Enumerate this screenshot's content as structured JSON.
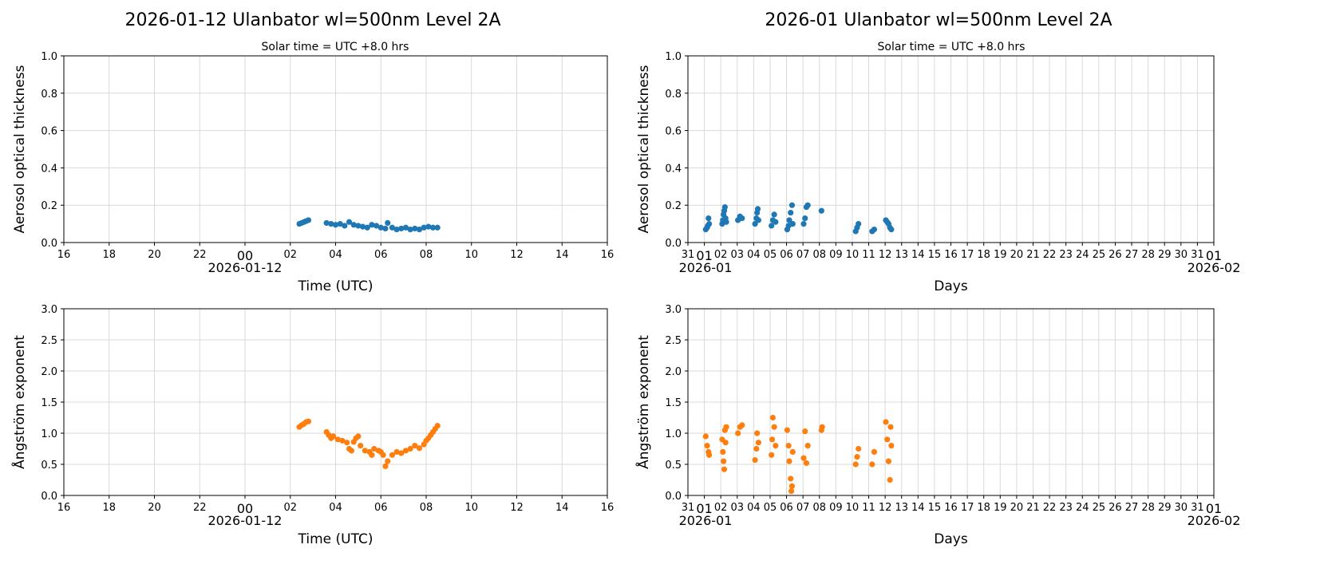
{
  "colors": {
    "aot": "#1f77b4",
    "ae": "#ff7f0e",
    "grid": "#d9d9d9"
  },
  "chart_data": [
    {
      "type": "scatter",
      "panel": "daily-aot",
      "title": "2026-01-12  Ulanbator  wl=500nm  Level 2A",
      "subtitle": "Solar time = UTC +8.0 hrs",
      "xlabel": "Time (UTC)",
      "ylabel": "Aerosol optical thickness",
      "date_label": "2026-01-12",
      "ylim": [
        0,
        1
      ],
      "yticks": [
        "0.0",
        "0.2",
        "0.4",
        "0.6",
        "0.8",
        "1.0"
      ],
      "xticks": [
        "16",
        "18",
        "20",
        "22",
        "00",
        "02",
        "04",
        "06",
        "08",
        "10",
        "12",
        "14",
        "16"
      ],
      "grid": true,
      "points": [
        [
          "02:24",
          0.1
        ],
        [
          "02:30",
          0.105
        ],
        [
          "02:36",
          0.11
        ],
        [
          "02:42",
          0.115
        ],
        [
          "02:48",
          0.12
        ],
        [
          "03:36",
          0.105
        ],
        [
          "03:48",
          0.1
        ],
        [
          "04:00",
          0.095
        ],
        [
          "04:12",
          0.1
        ],
        [
          "04:24",
          0.09
        ],
        [
          "04:36",
          0.11
        ],
        [
          "04:48",
          0.095
        ],
        [
          "05:00",
          0.09
        ],
        [
          "05:12",
          0.085
        ],
        [
          "05:24",
          0.08
        ],
        [
          "05:36",
          0.095
        ],
        [
          "05:48",
          0.09
        ],
        [
          "06:00",
          0.08
        ],
        [
          "06:12",
          0.075
        ],
        [
          "06:18",
          0.105
        ],
        [
          "06:30",
          0.08
        ],
        [
          "06:42",
          0.07
        ],
        [
          "06:54",
          0.075
        ],
        [
          "07:06",
          0.08
        ],
        [
          "07:18",
          0.07
        ],
        [
          "07:30",
          0.075
        ],
        [
          "07:42",
          0.07
        ],
        [
          "07:54",
          0.08
        ],
        [
          "08:06",
          0.085
        ],
        [
          "08:18",
          0.08
        ],
        [
          "08:30",
          0.08
        ]
      ]
    },
    {
      "type": "scatter",
      "panel": "monthly-aot",
      "title": "2026-01  Ulanbator  wl=500nm  Level 2A",
      "subtitle": "Solar time = UTC +8.0 hrs",
      "xlabel": "Days",
      "ylabel": "Aerosol optical thickness",
      "date_label_start": "2026-01",
      "date_label_end": "2026-02",
      "ylim": [
        0,
        1
      ],
      "yticks": [
        "0.0",
        "0.2",
        "0.4",
        "0.6",
        "0.8",
        "1.0"
      ],
      "xticks": [
        "31",
        "01",
        "02",
        "03",
        "04",
        "05",
        "06",
        "07",
        "08",
        "09",
        "10",
        "11",
        "12",
        "13",
        "14",
        "15",
        "16",
        "17",
        "18",
        "19",
        "20",
        "21",
        "22",
        "23",
        "24",
        "25",
        "26",
        "27",
        "28",
        "29",
        "30",
        "31",
        "01"
      ],
      "grid": true,
      "points": [
        [
          "01-01 02:00",
          0.07
        ],
        [
          "01-01 04:00",
          0.08
        ],
        [
          "01-01 05:00",
          0.09
        ],
        [
          "01-01 06:00",
          0.13
        ],
        [
          "01-01 07:00",
          0.1
        ],
        [
          "01-02 02:00",
          0.1
        ],
        [
          "01-02 03:00",
          0.12
        ],
        [
          "01-02 04:00",
          0.15
        ],
        [
          "01-02 05:00",
          0.17
        ],
        [
          "01-02 06:00",
          0.19
        ],
        [
          "01-02 07:00",
          0.13
        ],
        [
          "01-02 08:00",
          0.11
        ],
        [
          "01-03 01:00",
          0.12
        ],
        [
          "01-03 04:00",
          0.14
        ],
        [
          "01-03 07:00",
          0.13
        ],
        [
          "01-04 02:00",
          0.1
        ],
        [
          "01-04 04:00",
          0.13
        ],
        [
          "01-04 05:00",
          0.16
        ],
        [
          "01-04 06:00",
          0.18
        ],
        [
          "01-04 07:00",
          0.12
        ],
        [
          "01-05 02:00",
          0.09
        ],
        [
          "01-05 04:00",
          0.12
        ],
        [
          "01-05 06:00",
          0.15
        ],
        [
          "01-05 08:00",
          0.11
        ],
        [
          "01-06 01:00",
          0.07
        ],
        [
          "01-06 03:00",
          0.09
        ],
        [
          "01-06 04:00",
          0.12
        ],
        [
          "01-06 06:00",
          0.16
        ],
        [
          "01-06 08:00",
          0.2
        ],
        [
          "01-06 09:00",
          0.1
        ],
        [
          "01-07 01:00",
          0.1
        ],
        [
          "01-07 03:00",
          0.13
        ],
        [
          "01-07 05:00",
          0.19
        ],
        [
          "01-07 07:00",
          0.2
        ],
        [
          "01-08 03:00",
          0.17
        ],
        [
          "01-10 05:00",
          0.06
        ],
        [
          "01-10 07:00",
          0.08
        ],
        [
          "01-10 09:00",
          0.1
        ],
        [
          "01-11 05:00",
          0.06
        ],
        [
          "01-11 08:00",
          0.07
        ],
        [
          "01-12 01:00",
          0.12
        ],
        [
          "01-12 03:00",
          0.11
        ],
        [
          "01-12 05:00",
          0.1
        ],
        [
          "01-12 07:00",
          0.08
        ],
        [
          "01-12 09:00",
          0.07
        ]
      ]
    },
    {
      "type": "scatter",
      "panel": "daily-ae",
      "xlabel": "Time (UTC)",
      "ylabel": "Ångström exponent",
      "date_label": "2026-01-12",
      "ylim": [
        0,
        3
      ],
      "yticks": [
        "0.0",
        "0.5",
        "1.0",
        "1.5",
        "2.0",
        "2.5",
        "3.0"
      ],
      "xticks": [
        "16",
        "18",
        "20",
        "22",
        "00",
        "02",
        "04",
        "06",
        "08",
        "10",
        "12",
        "14",
        "16"
      ],
      "grid": true,
      "points": [
        [
          "02:24",
          1.1
        ],
        [
          "02:30",
          1.13
        ],
        [
          "02:36",
          1.15
        ],
        [
          "02:42",
          1.18
        ],
        [
          "02:48",
          1.19
        ],
        [
          "03:36",
          1.02
        ],
        [
          "03:42",
          0.97
        ],
        [
          "03:48",
          0.92
        ],
        [
          "03:54",
          0.95
        ],
        [
          "04:06",
          0.9
        ],
        [
          "04:18",
          0.88
        ],
        [
          "04:30",
          0.85
        ],
        [
          "04:36",
          0.75
        ],
        [
          "04:42",
          0.72
        ],
        [
          "04:48",
          0.86
        ],
        [
          "04:54",
          0.92
        ],
        [
          "05:00",
          0.95
        ],
        [
          "05:06",
          0.8
        ],
        [
          "05:18",
          0.72
        ],
        [
          "05:30",
          0.7
        ],
        [
          "05:36",
          0.65
        ],
        [
          "05:42",
          0.75
        ],
        [
          "05:54",
          0.72
        ],
        [
          "06:00",
          0.7
        ],
        [
          "06:06",
          0.65
        ],
        [
          "06:12",
          0.47
        ],
        [
          "06:18",
          0.55
        ],
        [
          "06:30",
          0.65
        ],
        [
          "06:42",
          0.7
        ],
        [
          "06:54",
          0.68
        ],
        [
          "07:06",
          0.72
        ],
        [
          "07:18",
          0.75
        ],
        [
          "07:30",
          0.8
        ],
        [
          "07:42",
          0.76
        ],
        [
          "07:54",
          0.82
        ],
        [
          "08:00",
          0.88
        ],
        [
          "08:06",
          0.92
        ],
        [
          "08:12",
          0.97
        ],
        [
          "08:18",
          1.02
        ],
        [
          "08:24",
          1.07
        ],
        [
          "08:30",
          1.12
        ]
      ]
    },
    {
      "type": "scatter",
      "panel": "monthly-ae",
      "xlabel": "Days",
      "ylabel": "Ångström exponent",
      "date_label_start": "2026-01",
      "date_label_end": "2026-02",
      "ylim": [
        0,
        3
      ],
      "yticks": [
        "0.0",
        "0.5",
        "1.0",
        "1.5",
        "2.0",
        "2.5",
        "3.0"
      ],
      "xticks": [
        "31",
        "01",
        "02",
        "03",
        "04",
        "05",
        "06",
        "07",
        "08",
        "09",
        "10",
        "11",
        "12",
        "13",
        "14",
        "15",
        "16",
        "17",
        "18",
        "19",
        "20",
        "21",
        "22",
        "23",
        "24",
        "25",
        "26",
        "27",
        "28",
        "29",
        "30",
        "31",
        "01"
      ],
      "grid": true,
      "points": [
        [
          "01-01 02:00",
          0.95
        ],
        [
          "01-01 04:00",
          0.8
        ],
        [
          "01-01 06:00",
          0.7
        ],
        [
          "01-01 07:00",
          0.65
        ],
        [
          "01-02 02:00",
          0.9
        ],
        [
          "01-02 03:00",
          0.7
        ],
        [
          "01-02 04:00",
          0.55
        ],
        [
          "01-02 05:00",
          0.42
        ],
        [
          "01-02 06:00",
          1.05
        ],
        [
          "01-02 07:00",
          0.85
        ],
        [
          "01-02 08:00",
          1.1
        ],
        [
          "01-03 01:00",
          1.0
        ],
        [
          "01-03 04:00",
          1.1
        ],
        [
          "01-03 07:00",
          1.13
        ],
        [
          "01-04 02:00",
          0.57
        ],
        [
          "01-04 04:00",
          0.75
        ],
        [
          "01-04 05:00",
          1.0
        ],
        [
          "01-04 07:00",
          0.85
        ],
        [
          "01-05 02:00",
          0.65
        ],
        [
          "01-05 03:00",
          0.9
        ],
        [
          "01-05 04:00",
          1.25
        ],
        [
          "01-05 06:00",
          1.1
        ],
        [
          "01-05 08:00",
          0.8
        ],
        [
          "01-06 01:00",
          1.05
        ],
        [
          "01-06 03:00",
          0.8
        ],
        [
          "01-06 04:00",
          0.55
        ],
        [
          "01-06 06:00",
          0.27
        ],
        [
          "01-06 07:00",
          0.07
        ],
        [
          "01-06 08:00",
          0.15
        ],
        [
          "01-06 09:00",
          0.7
        ],
        [
          "01-07 01:00",
          0.6
        ],
        [
          "01-07 03:00",
          1.03
        ],
        [
          "01-07 05:00",
          0.52
        ],
        [
          "01-07 07:00",
          0.8
        ],
        [
          "01-08 03:00",
          1.05
        ],
        [
          "01-08 04:00",
          1.1
        ],
        [
          "01-10 05:00",
          0.5
        ],
        [
          "01-10 07:00",
          0.62
        ],
        [
          "01-10 09:00",
          0.75
        ],
        [
          "01-11 05:00",
          0.5
        ],
        [
          "01-11 08:00",
          0.7
        ],
        [
          "01-12 01:00",
          1.18
        ],
        [
          "01-12 03:00",
          0.9
        ],
        [
          "01-12 05:00",
          0.55
        ],
        [
          "01-12 07:00",
          0.25
        ],
        [
          "01-12 08:00",
          1.1
        ],
        [
          "01-12 09:00",
          0.8
        ]
      ]
    }
  ]
}
